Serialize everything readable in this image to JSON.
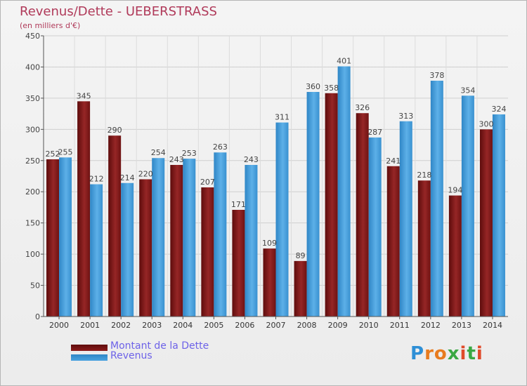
{
  "title": "Revenus/Dette - UEBERSTRASS",
  "subtitle": "(en milliers d'€)",
  "logo_text": "Proxiti",
  "colors": {
    "dette": "#8b1a1a",
    "revenus": "#4aa3df",
    "title": "#b03a5a",
    "legend_text": "#6d62e8",
    "grid": "#cfcfcf"
  },
  "chart_data": {
    "type": "bar",
    "title": "Revenus/Dette - UEBERSTRASS",
    "subtitle": "(en milliers d'€)",
    "xlabel": "",
    "ylabel": "",
    "ylim": [
      0,
      450
    ],
    "yticks": [
      0,
      50,
      100,
      150,
      200,
      250,
      300,
      350,
      400,
      450
    ],
    "grid": true,
    "legend_position": "bottom-left",
    "categories": [
      "2000",
      "2001",
      "2002",
      "2003",
      "2004",
      "2005",
      "2006",
      "2007",
      "2008",
      "2009",
      "2010",
      "2011",
      "2012",
      "2013",
      "2014"
    ],
    "series": [
      {
        "name": "Montant de la Dette",
        "color": "#8b1a1a",
        "values": [
          252,
          345,
          290,
          220,
          243,
          207,
          171,
          109,
          89,
          358,
          326,
          241,
          218,
          194,
          300
        ]
      },
      {
        "name": "Revenus",
        "color": "#4aa3df",
        "values": [
          255,
          212,
          214,
          254,
          253,
          263,
          243,
          311,
          360,
          401,
          287,
          313,
          378,
          354,
          324
        ]
      }
    ]
  }
}
